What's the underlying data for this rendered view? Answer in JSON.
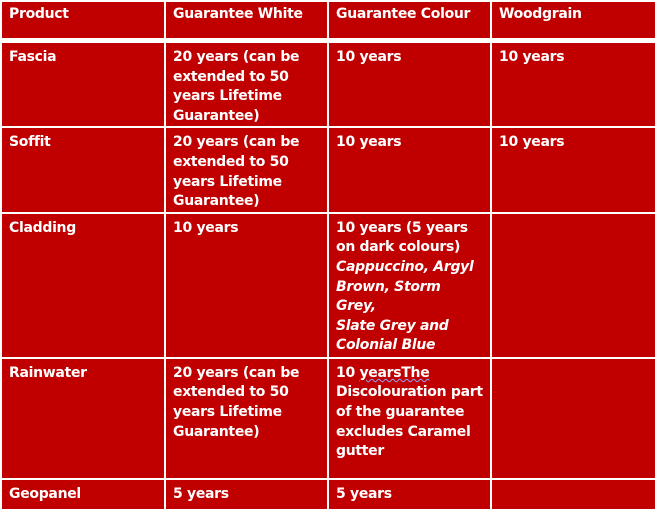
{
  "colors": {
    "cell_background": "#c00000",
    "text": "#ffffff",
    "grid": "#ffffff"
  },
  "headers": [
    "Product",
    "Guarantee White",
    "Guarantee Colour",
    "Woodgrain"
  ],
  "rows": [
    {
      "product": "Fascia",
      "white": "20 years (can be extended to 50 years Lifetime Guarantee)",
      "colour": "10 years",
      "woodgrain": "10 years"
    },
    {
      "product": "Soffit",
      "white": "20 years (can be extended to 50 years Lifetime Guarantee)",
      "colour": "10 years",
      "woodgrain": "10 years"
    },
    {
      "product": "Cladding",
      "white": "10 years",
      "colour": "10 years (5 years on dark colours)",
      "colour_italic": [
        "Cappuccino, Argyl Brown, Storm Grey,",
        "Slate Grey and Colonial Blue"
      ],
      "woodgrain": ""
    },
    {
      "product": "Rainwater",
      "white": "20 years (can be extended to 50 years Lifetime Guarantee)",
      "colour_underlined": "10 years",
      "colour": "The Discolouration part of the guarantee excludes Caramel gutter",
      "woodgrain": ""
    },
    {
      "product": "Geopanel",
      "white": "5 years",
      "colour": "5 years",
      "woodgrain": ""
    }
  ]
}
